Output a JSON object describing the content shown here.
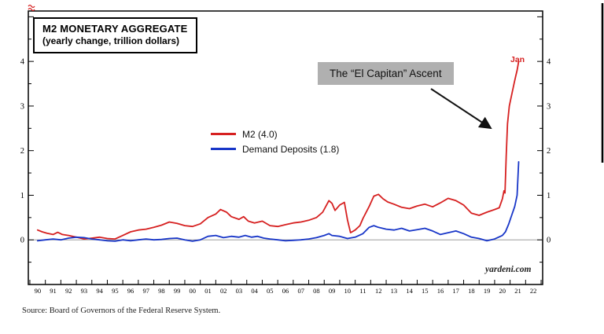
{
  "title_box": {
    "line1": "M2 MONETARY AGGREGATE",
    "line2": "(yearly change, trillion dollars)"
  },
  "annotation": {
    "text": "The “El Capitan” Ascent"
  },
  "peak_label": "Jan",
  "watermark": "yardeni.com",
  "source": "Source: Board of Governors of the Federal Reserve System.",
  "colors": {
    "m2_red": "#d62020",
    "deposits_blue": "#1836c8",
    "annotation_gray": "#b0b0b0"
  },
  "legend": [
    {
      "label": "M2 (4.0)",
      "color": "#d62020"
    },
    {
      "label": "Demand Deposits (1.8)",
      "color": "#1836c8"
    }
  ],
  "chart_data": {
    "type": "line",
    "title": "M2 MONETARY AGGREGATE (yearly change, trillion dollars)",
    "xlabel": "",
    "ylabel": "yearly change, trillion dollars",
    "x_range": [
      1989.4,
      2022.6
    ],
    "ylim": [
      -1.0,
      5.13
    ],
    "y_ticks": [
      0,
      1,
      2,
      3,
      4
    ],
    "grid": false,
    "legend_position": "center-left",
    "x_categories": [
      "90",
      "91",
      "92",
      "93",
      "94",
      "95",
      "96",
      "97",
      "98",
      "99",
      "00",
      "01",
      "02",
      "03",
      "04",
      "05",
      "06",
      "07",
      "08",
      "09",
      "10",
      "11",
      "12",
      "13",
      "14",
      "15",
      "16",
      "17",
      "18",
      "19",
      "20",
      "21",
      "22"
    ],
    "series": [
      {
        "name": "M2",
        "color": "#d62020",
        "final_value": 4.0,
        "points": [
          [
            1990.0,
            0.22
          ],
          [
            1990.3,
            0.18
          ],
          [
            1990.6,
            0.15
          ],
          [
            1991.0,
            0.12
          ],
          [
            1991.3,
            0.17
          ],
          [
            1991.6,
            0.12
          ],
          [
            1992.0,
            0.1
          ],
          [
            1992.5,
            0.06
          ],
          [
            1993.0,
            0.02
          ],
          [
            1993.5,
            0.04
          ],
          [
            1994.0,
            0.06
          ],
          [
            1994.5,
            0.03
          ],
          [
            1995.0,
            0.02
          ],
          [
            1995.5,
            0.1
          ],
          [
            1996.0,
            0.18
          ],
          [
            1996.5,
            0.22
          ],
          [
            1997.0,
            0.24
          ],
          [
            1997.5,
            0.28
          ],
          [
            1998.0,
            0.33
          ],
          [
            1998.5,
            0.4
          ],
          [
            1999.0,
            0.37
          ],
          [
            1999.5,
            0.32
          ],
          [
            2000.0,
            0.3
          ],
          [
            2000.5,
            0.36
          ],
          [
            2001.0,
            0.5
          ],
          [
            2001.5,
            0.58
          ],
          [
            2001.8,
            0.68
          ],
          [
            2002.2,
            0.62
          ],
          [
            2002.5,
            0.52
          ],
          [
            2003.0,
            0.46
          ],
          [
            2003.3,
            0.52
          ],
          [
            2003.6,
            0.42
          ],
          [
            2004.0,
            0.38
          ],
          [
            2004.5,
            0.42
          ],
          [
            2005.0,
            0.32
          ],
          [
            2005.5,
            0.3
          ],
          [
            2006.0,
            0.34
          ],
          [
            2006.5,
            0.38
          ],
          [
            2007.0,
            0.4
          ],
          [
            2007.5,
            0.44
          ],
          [
            2008.0,
            0.5
          ],
          [
            2008.4,
            0.62
          ],
          [
            2008.8,
            0.88
          ],
          [
            2009.0,
            0.82
          ],
          [
            2009.2,
            0.66
          ],
          [
            2009.5,
            0.78
          ],
          [
            2009.8,
            0.84
          ],
          [
            2010.0,
            0.45
          ],
          [
            2010.2,
            0.16
          ],
          [
            2010.5,
            0.22
          ],
          [
            2010.8,
            0.32
          ],
          [
            2011.0,
            0.48
          ],
          [
            2011.4,
            0.75
          ],
          [
            2011.7,
            0.98
          ],
          [
            2012.0,
            1.02
          ],
          [
            2012.3,
            0.92
          ],
          [
            2012.6,
            0.85
          ],
          [
            2013.0,
            0.8
          ],
          [
            2013.5,
            0.73
          ],
          [
            2014.0,
            0.7
          ],
          [
            2014.5,
            0.76
          ],
          [
            2015.0,
            0.8
          ],
          [
            2015.5,
            0.74
          ],
          [
            2016.0,
            0.83
          ],
          [
            2016.5,
            0.93
          ],
          [
            2017.0,
            0.88
          ],
          [
            2017.5,
            0.78
          ],
          [
            2018.0,
            0.6
          ],
          [
            2018.5,
            0.55
          ],
          [
            2019.0,
            0.62
          ],
          [
            2019.5,
            0.68
          ],
          [
            2019.8,
            0.72
          ],
          [
            2020.0,
            0.92
          ],
          [
            2020.1,
            1.1
          ],
          [
            2020.17,
            1.05
          ],
          [
            2020.25,
            1.9
          ],
          [
            2020.33,
            2.6
          ],
          [
            2020.45,
            3.0
          ],
          [
            2020.6,
            3.25
          ],
          [
            2020.75,
            3.5
          ],
          [
            2020.85,
            3.65
          ],
          [
            2020.95,
            3.8
          ],
          [
            2021.05,
            4.0
          ]
        ]
      },
      {
        "name": "Demand Deposits",
        "color": "#1836c8",
        "final_value": 1.8,
        "points": [
          [
            1990.0,
            -0.02
          ],
          [
            1990.5,
            0.0
          ],
          [
            1991.0,
            0.02
          ],
          [
            1991.5,
            0.0
          ],
          [
            1992.0,
            0.04
          ],
          [
            1992.5,
            0.06
          ],
          [
            1993.0,
            0.05
          ],
          [
            1993.5,
            0.02
          ],
          [
            1994.0,
            0.0
          ],
          [
            1994.5,
            -0.02
          ],
          [
            1995.0,
            -0.03
          ],
          [
            1995.5,
            0.0
          ],
          [
            1996.0,
            -0.02
          ],
          [
            1996.5,
            0.0
          ],
          [
            1997.0,
            0.02
          ],
          [
            1997.5,
            0.0
          ],
          [
            1998.0,
            0.01
          ],
          [
            1998.5,
            0.03
          ],
          [
            1999.0,
            0.04
          ],
          [
            1999.5,
            0.0
          ],
          [
            2000.0,
            -0.03
          ],
          [
            2000.5,
            0.0
          ],
          [
            2001.0,
            0.08
          ],
          [
            2001.5,
            0.1
          ],
          [
            2002.0,
            0.05
          ],
          [
            2002.5,
            0.08
          ],
          [
            2003.0,
            0.06
          ],
          [
            2003.4,
            0.1
          ],
          [
            2003.8,
            0.06
          ],
          [
            2004.2,
            0.08
          ],
          [
            2004.6,
            0.04
          ],
          [
            2005.0,
            0.02
          ],
          [
            2005.5,
            0.0
          ],
          [
            2006.0,
            -0.02
          ],
          [
            2006.5,
            -0.01
          ],
          [
            2007.0,
            0.0
          ],
          [
            2007.5,
            0.02
          ],
          [
            2008.0,
            0.05
          ],
          [
            2008.5,
            0.1
          ],
          [
            2008.8,
            0.14
          ],
          [
            2009.0,
            0.1
          ],
          [
            2009.5,
            0.08
          ],
          [
            2010.0,
            0.03
          ],
          [
            2010.5,
            0.06
          ],
          [
            2011.0,
            0.14
          ],
          [
            2011.4,
            0.28
          ],
          [
            2011.7,
            0.32
          ],
          [
            2012.0,
            0.28
          ],
          [
            2012.5,
            0.24
          ],
          [
            2013.0,
            0.22
          ],
          [
            2013.5,
            0.26
          ],
          [
            2014.0,
            0.2
          ],
          [
            2014.5,
            0.23
          ],
          [
            2015.0,
            0.26
          ],
          [
            2015.5,
            0.2
          ],
          [
            2016.0,
            0.12
          ],
          [
            2016.5,
            0.16
          ],
          [
            2017.0,
            0.2
          ],
          [
            2017.5,
            0.14
          ],
          [
            2018.0,
            0.06
          ],
          [
            2018.5,
            0.03
          ],
          [
            2019.0,
            -0.02
          ],
          [
            2019.5,
            0.02
          ],
          [
            2020.0,
            0.1
          ],
          [
            2020.2,
            0.18
          ],
          [
            2020.4,
            0.35
          ],
          [
            2020.6,
            0.55
          ],
          [
            2020.8,
            0.75
          ],
          [
            2020.95,
            1.0
          ],
          [
            2021.05,
            1.75
          ]
        ]
      }
    ]
  }
}
